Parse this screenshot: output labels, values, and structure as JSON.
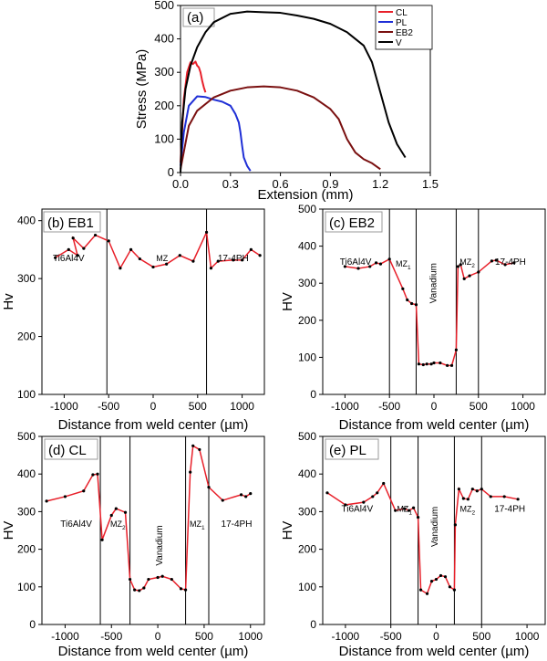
{
  "chart_data": [
    {
      "panel": "(a)",
      "type": "line",
      "xlabel": "Extension (mm)",
      "ylabel": "Stress (MPa)",
      "xlim": [
        0,
        1.5
      ],
      "ylim": [
        0,
        500
      ],
      "xticks": [
        "0.0",
        "0.3",
        "0.6",
        "0.9",
        "1.2",
        "1.5"
      ],
      "yticks": [
        "0",
        "100",
        "200",
        "300",
        "400",
        "500"
      ],
      "legend_position": "top-right",
      "series": [
        {
          "name": "CL",
          "color": "#e8202a",
          "x": [
            0,
            0.02,
            0.04,
            0.06,
            0.075,
            0.09,
            0.1,
            0.11,
            0.12,
            0.13,
            0.14,
            0.15
          ],
          "y": [
            30,
            220,
            300,
            330,
            325,
            332,
            320,
            315,
            300,
            275,
            255,
            240
          ]
        },
        {
          "name": "PL",
          "color": "#1f2fd6",
          "x": [
            0,
            0.02,
            0.05,
            0.1,
            0.15,
            0.2,
            0.25,
            0.3,
            0.33,
            0.35,
            0.36,
            0.37,
            0.38,
            0.4,
            0.42
          ],
          "y": [
            20,
            120,
            200,
            228,
            226,
            218,
            212,
            200,
            175,
            150,
            120,
            80,
            45,
            20,
            5
          ]
        },
        {
          "name": "EB2",
          "color": "#7a1010",
          "x": [
            0,
            0.05,
            0.1,
            0.2,
            0.3,
            0.4,
            0.5,
            0.6,
            0.7,
            0.8,
            0.9,
            0.95,
            1.0,
            1.05,
            1.1,
            1.15,
            1.2
          ],
          "y": [
            10,
            140,
            185,
            225,
            245,
            255,
            258,
            255,
            245,
            225,
            190,
            160,
            100,
            60,
            40,
            28,
            10
          ]
        },
        {
          "name": "V",
          "color": "#000000",
          "x": [
            0,
            0.01,
            0.03,
            0.06,
            0.1,
            0.15,
            0.2,
            0.3,
            0.4,
            0.5,
            0.6,
            0.7,
            0.8,
            0.9,
            1.0,
            1.1,
            1.15,
            1.2,
            1.25,
            1.3,
            1.35
          ],
          "y": [
            0,
            150,
            250,
            320,
            375,
            420,
            450,
            475,
            482,
            480,
            478,
            470,
            460,
            445,
            420,
            380,
            330,
            240,
            150,
            85,
            45
          ]
        }
      ]
    },
    {
      "panel": "(b) EB1",
      "type": "line",
      "xlabel": "Distance from weld center (µm)",
      "ylabel": "Hv",
      "xlim": [
        -1250,
        1250
      ],
      "ylim": [
        100,
        420
      ],
      "xticks": [
        "-1000",
        "-500",
        "0",
        "500",
        "1000"
      ],
      "yticks": [
        "100",
        "200",
        "300",
        "400"
      ],
      "boundaries": [
        -520,
        600
      ],
      "zone_labels": [
        "Ti6Al4V",
        "MZ",
        "17-4PH"
      ],
      "x": [
        -1100,
        -950,
        -850,
        -900,
        -780,
        -650,
        -500,
        -370,
        -250,
        -150,
        0,
        150,
        300,
        450,
        600,
        650,
        730,
        900,
        1000,
        1100,
        1200
      ],
      "y": [
        336,
        350,
        340,
        370,
        352,
        375,
        365,
        318,
        350,
        334,
        320,
        325,
        340,
        330,
        380,
        318,
        330,
        332,
        332,
        350,
        340
      ]
    },
    {
      "panel": "(c) EB2",
      "type": "line",
      "xlabel": "Distance from weld center (µm)",
      "ylabel": "HV",
      "xlim": [
        -1250,
        1250
      ],
      "ylim": [
        0,
        500
      ],
      "xticks": [
        "-1000",
        "-500",
        "0",
        "500",
        "1000"
      ],
      "yticks": [
        "0",
        "100",
        "200",
        "300",
        "400",
        "500"
      ],
      "boundaries": [
        -500,
        -200,
        250,
        500
      ],
      "zone_labels": [
        "Ti6Al4V",
        "MZ1",
        "Vanadium",
        "MZ2",
        "17-4PH"
      ],
      "x": [
        -1000,
        -850,
        -720,
        -650,
        -600,
        -500,
        -350,
        -300,
        -250,
        -200,
        -170,
        -120,
        -80,
        -30,
        0,
        70,
        150,
        200,
        250,
        270,
        300,
        340,
        400,
        500,
        650,
        700,
        800,
        900
      ],
      "y": [
        345,
        340,
        345,
        355,
        352,
        365,
        285,
        255,
        245,
        242,
        82,
        80,
        82,
        82,
        85,
        85,
        78,
        78,
        120,
        345,
        350,
        312,
        320,
        330,
        360,
        362,
        350,
        355
      ]
    },
    {
      "panel": "(d) CL",
      "type": "line",
      "xlabel": "Distance from weld center (µm)",
      "ylabel": "HV",
      "xlim": [
        -1250,
        1150
      ],
      "ylim": [
        0,
        500
      ],
      "xticks": [
        "-1000",
        "-500",
        "0",
        "500",
        "1000"
      ],
      "yticks": [
        "0",
        "100",
        "200",
        "300",
        "400",
        "500"
      ],
      "boundaries": [
        -620,
        -300,
        300,
        550
      ],
      "zone_labels": [
        "Ti6Al4V",
        "MZ2",
        "Vanadium",
        "MZ1",
        "17-4PH"
      ],
      "x": [
        -1200,
        -1000,
        -800,
        -700,
        -650,
        -600,
        -500,
        -450,
        -350,
        -300,
        -250,
        -200,
        -150,
        -100,
        0,
        50,
        150,
        250,
        300,
        350,
        380,
        450,
        550,
        700,
        900,
        950,
        1000
      ],
      "y": [
        328,
        340,
        355,
        398,
        400,
        225,
        290,
        308,
        298,
        120,
        92,
        90,
        97,
        120,
        125,
        128,
        120,
        95,
        92,
        405,
        475,
        465,
        365,
        330,
        345,
        340,
        348
      ]
    },
    {
      "panel": "(e) PL",
      "type": "line",
      "xlabel": "Distance from weld center (µm)",
      "ylabel": "HV",
      "xlim": [
        -1250,
        1200
      ],
      "ylim": [
        0,
        500
      ],
      "xticks": [
        "-1000",
        "-500",
        "0",
        "500",
        "1000"
      ],
      "yticks": [
        "0",
        "100",
        "200",
        "300",
        "400",
        "500"
      ],
      "boundaries": [
        -500,
        -200,
        200,
        500
      ],
      "zone_labels": [
        "Ti6Al4V",
        "MZ1",
        "Vanadium",
        "MZ2",
        "17-4PH"
      ],
      "x": [
        -1200,
        -1000,
        -800,
        -700,
        -650,
        -580,
        -450,
        -350,
        -300,
        -250,
        -200,
        -170,
        -100,
        -50,
        0,
        50,
        100,
        150,
        200,
        210,
        250,
        300,
        350,
        400,
        450,
        500,
        600,
        750,
        900
      ],
      "y": [
        350,
        318,
        325,
        340,
        350,
        375,
        303,
        308,
        303,
        310,
        285,
        92,
        82,
        115,
        120,
        130,
        127,
        100,
        92,
        265,
        360,
        335,
        333,
        360,
        355,
        360,
        340,
        340,
        333
      ]
    }
  ]
}
